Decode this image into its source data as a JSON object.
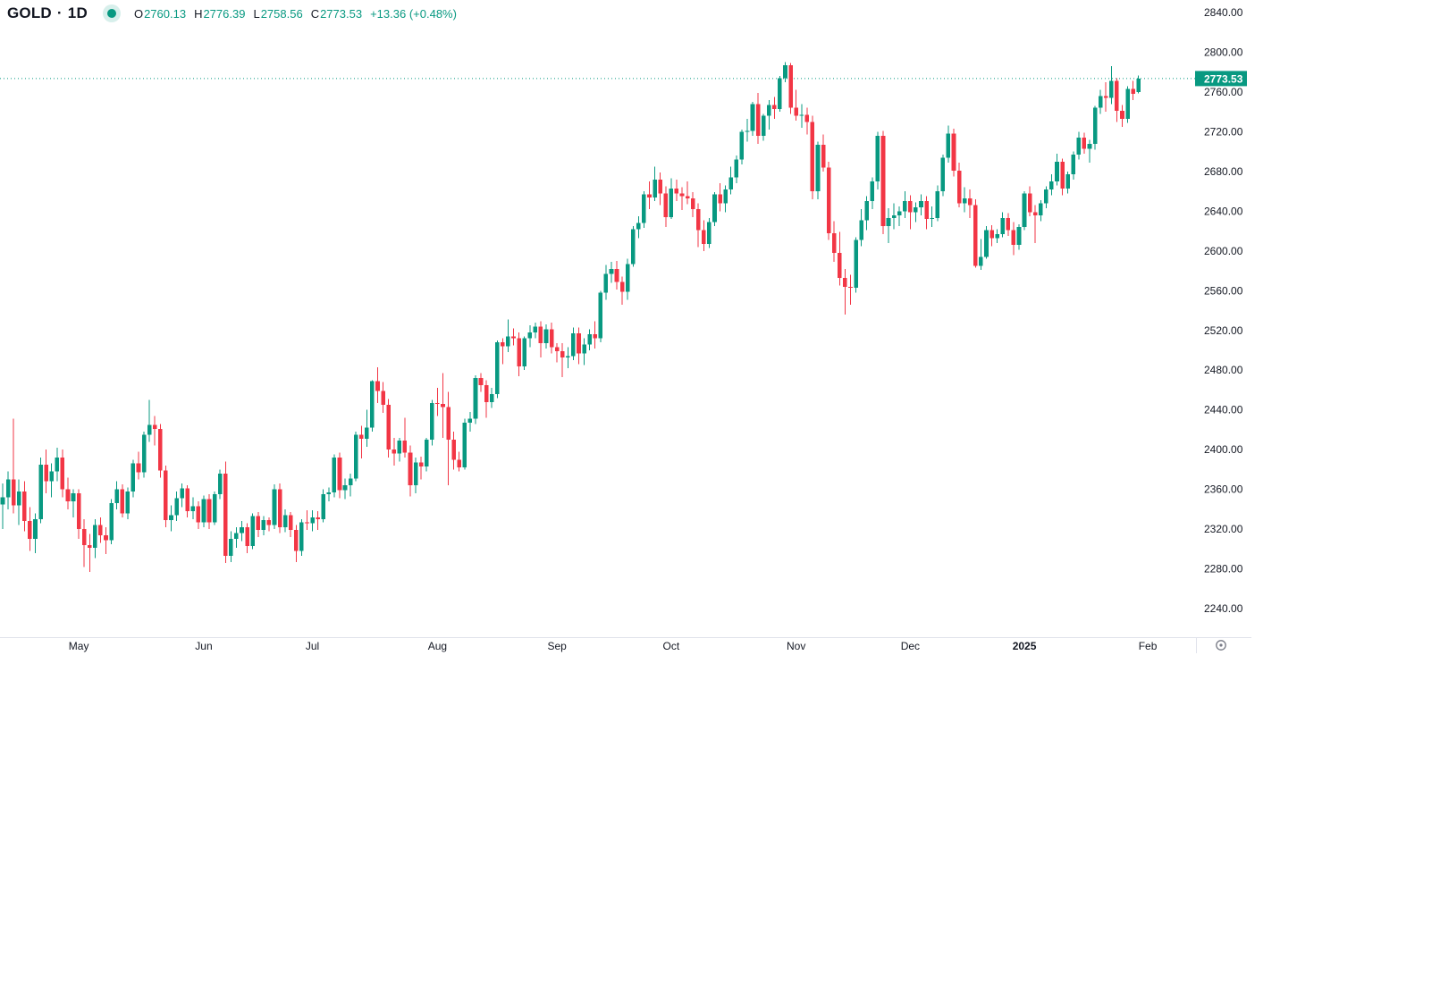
{
  "header": {
    "symbol": "GOLD",
    "separator": "·",
    "timeframe": "1D",
    "o_label": "O",
    "o_value": "2760.13",
    "h_label": "H",
    "h_value": "2776.39",
    "l_label": "L",
    "l_value": "2758.56",
    "c_label": "C",
    "c_value": "2773.53",
    "change_abs": "+13.36",
    "change_pct": "(+0.48%)"
  },
  "colors": {
    "up": "#089981",
    "down": "#f23645",
    "text": "#131722",
    "muted": "#787b86",
    "grid": "#e0e3eb",
    "price_label_bg": "#089981",
    "price_label_text": "#ffffff"
  },
  "price_axis": {
    "current_price_label": "2773.53",
    "ticks": [
      {
        "label": "2840.00",
        "value": 2840
      },
      {
        "label": "2800.00",
        "value": 2800
      },
      {
        "label": "2760.00",
        "value": 2760
      },
      {
        "label": "2720.00",
        "value": 2720
      },
      {
        "label": "2680.00",
        "value": 2680
      },
      {
        "label": "2640.00",
        "value": 2640
      },
      {
        "label": "2600.00",
        "value": 2600
      },
      {
        "label": "2560.00",
        "value": 2560
      },
      {
        "label": "2520.00",
        "value": 2520
      },
      {
        "label": "2480.00",
        "value": 2480
      },
      {
        "label": "2440.00",
        "value": 2440
      },
      {
        "label": "2400.00",
        "value": 2400
      },
      {
        "label": "2360.00",
        "value": 2360
      },
      {
        "label": "2320.00",
        "value": 2320
      },
      {
        "label": "2280.00",
        "value": 2280
      },
      {
        "label": "2240.00",
        "value": 2240
      }
    ]
  },
  "time_axis": {
    "labels": [
      {
        "label": "May",
        "index": 14,
        "bold": false
      },
      {
        "label": "Jun",
        "index": 37,
        "bold": false
      },
      {
        "label": "Jul",
        "index": 57,
        "bold": false
      },
      {
        "label": "Aug",
        "index": 80,
        "bold": false
      },
      {
        "label": "Sep",
        "index": 102,
        "bold": false
      },
      {
        "label": "Oct",
        "index": 123,
        "bold": false
      },
      {
        "label": "Nov",
        "index": 146,
        "bold": false
      },
      {
        "label": "Dec",
        "index": 167,
        "bold": false
      },
      {
        "label": "2025",
        "index": 188,
        "bold": true
      },
      {
        "label": "Feb",
        "index": 210.7,
        "bold": false
      }
    ]
  },
  "chart_data": {
    "type": "candlestick",
    "symbol": "GOLD",
    "timeframe": "1D",
    "current_price": 2773.53,
    "last_candle": {
      "open": 2760.13,
      "high": 2776.39,
      "low": 2758.56,
      "close": 2773.53,
      "change": 13.36,
      "change_pct": 0.48
    },
    "visible_price_range": [
      2211,
      2853
    ],
    "visible_time_range": "Apr 2024 - Feb 2025",
    "legend_position": "top-left",
    "grid": false,
    "candles_ohlc": [
      [
        2345,
        2366,
        2320,
        2352
      ],
      [
        2352,
        2378,
        2340,
        2370
      ],
      [
        2370,
        2431,
        2336,
        2344
      ],
      [
        2344,
        2370,
        2324,
        2358
      ],
      [
        2358,
        2368,
        2318,
        2328
      ],
      [
        2328,
        2342,
        2298,
        2310
      ],
      [
        2310,
        2336,
        2296,
        2330
      ],
      [
        2330,
        2392,
        2326,
        2385
      ],
      [
        2385,
        2400,
        2356,
        2368
      ],
      [
        2368,
        2386,
        2352,
        2378
      ],
      [
        2378,
        2402,
        2368,
        2392
      ],
      [
        2392,
        2400,
        2352,
        2360
      ],
      [
        2360,
        2372,
        2340,
        2348
      ],
      [
        2348,
        2360,
        2332,
        2356
      ],
      [
        2356,
        2360,
        2310,
        2320
      ],
      [
        2320,
        2330,
        2282,
        2304
      ],
      [
        2304,
        2315,
        2277,
        2301
      ],
      [
        2301,
        2330,
        2291,
        2324
      ],
      [
        2324,
        2332,
        2306,
        2314
      ],
      [
        2314,
        2322,
        2295,
        2309
      ],
      [
        2309,
        2350,
        2305,
        2346
      ],
      [
        2346,
        2368,
        2340,
        2360
      ],
      [
        2360,
        2365,
        2332,
        2336
      ],
      [
        2336,
        2362,
        2330,
        2358
      ],
      [
        2358,
        2390,
        2352,
        2386
      ],
      [
        2386,
        2398,
        2370,
        2377
      ],
      [
        2377,
        2418,
        2372,
        2415
      ],
      [
        2415,
        2450,
        2408,
        2425
      ],
      [
        2425,
        2434,
        2404,
        2421
      ],
      [
        2421,
        2426,
        2372,
        2379
      ],
      [
        2379,
        2384,
        2322,
        2329
      ],
      [
        2329,
        2344,
        2318,
        2334
      ],
      [
        2334,
        2358,
        2328,
        2351
      ],
      [
        2351,
        2366,
        2342,
        2361
      ],
      [
        2361,
        2364,
        2332,
        2338
      ],
      [
        2338,
        2352,
        2330,
        2343
      ],
      [
        2343,
        2348,
        2320,
        2327
      ],
      [
        2327,
        2354,
        2322,
        2350
      ],
      [
        2350,
        2355,
        2320,
        2327
      ],
      [
        2327,
        2358,
        2324,
        2355
      ],
      [
        2355,
        2380,
        2350,
        2376
      ],
      [
        2376,
        2388,
        2286,
        2293
      ],
      [
        2293,
        2318,
        2287,
        2310
      ],
      [
        2310,
        2322,
        2301,
        2316
      ],
      [
        2316,
        2328,
        2308,
        2322
      ],
      [
        2322,
        2326,
        2296,
        2303
      ],
      [
        2303,
        2336,
        2300,
        2333
      ],
      [
        2333,
        2337,
        2312,
        2319
      ],
      [
        2319,
        2333,
        2314,
        2329
      ],
      [
        2329,
        2332,
        2318,
        2324
      ],
      [
        2324,
        2365,
        2320,
        2360
      ],
      [
        2360,
        2366,
        2316,
        2322
      ],
      [
        2322,
        2340,
        2317,
        2334
      ],
      [
        2334,
        2337,
        2312,
        2319
      ],
      [
        2319,
        2324,
        2287,
        2298
      ],
      [
        2298,
        2330,
        2293,
        2327
      ],
      [
        2327,
        2339,
        2319,
        2326
      ],
      [
        2326,
        2339,
        2318,
        2332
      ],
      [
        2332,
        2338,
        2319,
        2330
      ],
      [
        2330,
        2360,
        2327,
        2355
      ],
      [
        2355,
        2362,
        2348,
        2357
      ],
      [
        2357,
        2395,
        2352,
        2392
      ],
      [
        2392,
        2397,
        2351,
        2359
      ],
      [
        2359,
        2371,
        2350,
        2364
      ],
      [
        2364,
        2376,
        2353,
        2371
      ],
      [
        2371,
        2418,
        2368,
        2415
      ],
      [
        2415,
        2424,
        2391,
        2411
      ],
      [
        2411,
        2440,
        2403,
        2422
      ],
      [
        2422,
        2470,
        2418,
        2469
      ],
      [
        2469,
        2483,
        2447,
        2459
      ],
      [
        2459,
        2468,
        2437,
        2445
      ],
      [
        2445,
        2451,
        2392,
        2400
      ],
      [
        2400,
        2412,
        2384,
        2396
      ],
      [
        2396,
        2412,
        2388,
        2409
      ],
      [
        2409,
        2432,
        2392,
        2397
      ],
      [
        2397,
        2404,
        2353,
        2364
      ],
      [
        2364,
        2392,
        2356,
        2387
      ],
      [
        2387,
        2393,
        2370,
        2383
      ],
      [
        2383,
        2412,
        2378,
        2410
      ],
      [
        2410,
        2450,
        2404,
        2447
      ],
      [
        2447,
        2462,
        2434,
        2446
      ],
      [
        2446,
        2477,
        2412,
        2443
      ],
      [
        2443,
        2458,
        2364,
        2410
      ],
      [
        2410,
        2418,
        2380,
        2390
      ],
      [
        2390,
        2398,
        2378,
        2382
      ],
      [
        2382,
        2431,
        2380,
        2427
      ],
      [
        2427,
        2438,
        2418,
        2431
      ],
      [
        2431,
        2475,
        2426,
        2472
      ],
      [
        2472,
        2477,
        2458,
        2465
      ],
      [
        2465,
        2470,
        2432,
        2448
      ],
      [
        2448,
        2462,
        2442,
        2456
      ],
      [
        2456,
        2510,
        2452,
        2508
      ],
      [
        2508,
        2512,
        2486,
        2504
      ],
      [
        2504,
        2531,
        2498,
        2514
      ],
      [
        2514,
        2522,
        2505,
        2512
      ],
      [
        2512,
        2518,
        2474,
        2484
      ],
      [
        2484,
        2514,
        2480,
        2512
      ],
      [
        2512,
        2525,
        2503,
        2518
      ],
      [
        2518,
        2528,
        2512,
        2524
      ],
      [
        2524,
        2529,
        2493,
        2507
      ],
      [
        2507,
        2526,
        2502,
        2521
      ],
      [
        2521,
        2528,
        2497,
        2503
      ],
      [
        2503,
        2507,
        2488,
        2499
      ],
      [
        2499,
        2507,
        2473,
        2493
      ],
      [
        2493,
        2503,
        2482,
        2494
      ],
      [
        2494,
        2523,
        2490,
        2517
      ],
      [
        2517,
        2523,
        2486,
        2497
      ],
      [
        2497,
        2512,
        2485,
        2506
      ],
      [
        2506,
        2521,
        2500,
        2516
      ],
      [
        2516,
        2529,
        2502,
        2512
      ],
      [
        2512,
        2560,
        2508,
        2558
      ],
      [
        2558,
        2586,
        2551,
        2577
      ],
      [
        2577,
        2589,
        2568,
        2582
      ],
      [
        2582,
        2590,
        2561,
        2569
      ],
      [
        2569,
        2574,
        2546,
        2559
      ],
      [
        2559,
        2592,
        2551,
        2587
      ],
      [
        2587,
        2625,
        2584,
        2622
      ],
      [
        2622,
        2635,
        2613,
        2628
      ],
      [
        2628,
        2660,
        2623,
        2657
      ],
      [
        2657,
        2670,
        2642,
        2654
      ],
      [
        2654,
        2685,
        2650,
        2672
      ],
      [
        2672,
        2679,
        2646,
        2658
      ],
      [
        2658,
        2665,
        2624,
        2634
      ],
      [
        2634,
        2673,
        2632,
        2663
      ],
      [
        2663,
        2672,
        2650,
        2658
      ],
      [
        2658,
        2664,
        2641,
        2655
      ],
      [
        2655,
        2670,
        2647,
        2653
      ],
      [
        2653,
        2659,
        2634,
        2642
      ],
      [
        2642,
        2648,
        2604,
        2621
      ],
      [
        2621,
        2631,
        2600,
        2607
      ],
      [
        2607,
        2633,
        2603,
        2629
      ],
      [
        2629,
        2659,
        2625,
        2657
      ],
      [
        2657,
        2668,
        2640,
        2648
      ],
      [
        2648,
        2666,
        2639,
        2662
      ],
      [
        2662,
        2685,
        2657,
        2674
      ],
      [
        2674,
        2696,
        2668,
        2692
      ],
      [
        2692,
        2722,
        2687,
        2720
      ],
      [
        2720,
        2733,
        2710,
        2721
      ],
      [
        2721,
        2750,
        2716,
        2748
      ],
      [
        2748,
        2759,
        2708,
        2716
      ],
      [
        2716,
        2738,
        2711,
        2736
      ],
      [
        2736,
        2752,
        2722,
        2747
      ],
      [
        2747,
        2755,
        2733,
        2743
      ],
      [
        2743,
        2776,
        2740,
        2774
      ],
      [
        2774,
        2790,
        2770,
        2787
      ],
      [
        2787,
        2789,
        2738,
        2744
      ],
      [
        2744,
        2762,
        2731,
        2736
      ],
      [
        2736,
        2748,
        2724,
        2737
      ],
      [
        2737,
        2744,
        2717,
        2730
      ],
      [
        2730,
        2736,
        2652,
        2660
      ],
      [
        2660,
        2710,
        2652,
        2707
      ],
      [
        2707,
        2717,
        2680,
        2684
      ],
      [
        2684,
        2690,
        2611,
        2618
      ],
      [
        2618,
        2630,
        2589,
        2598
      ],
      [
        2598,
        2619,
        2565,
        2573
      ],
      [
        2573,
        2582,
        2536,
        2564
      ],
      [
        2564,
        2576,
        2546,
        2563
      ],
      [
        2563,
        2614,
        2558,
        2611
      ],
      [
        2611,
        2642,
        2605,
        2631
      ],
      [
        2631,
        2655,
        2621,
        2650
      ],
      [
        2650,
        2674,
        2642,
        2670
      ],
      [
        2670,
        2720,
        2662,
        2716
      ],
      [
        2716,
        2721,
        2617,
        2625
      ],
      [
        2625,
        2643,
        2608,
        2633
      ],
      [
        2633,
        2648,
        2622,
        2636
      ],
      [
        2636,
        2645,
        2625,
        2640
      ],
      [
        2640,
        2660,
        2633,
        2650
      ],
      [
        2650,
        2656,
        2622,
        2639
      ],
      [
        2639,
        2649,
        2629,
        2644
      ],
      [
        2644,
        2657,
        2636,
        2650
      ],
      [
        2650,
        2655,
        2622,
        2632
      ],
      [
        2632,
        2645,
        2624,
        2633
      ],
      [
        2633,
        2666,
        2630,
        2660
      ],
      [
        2660,
        2697,
        2655,
        2694
      ],
      [
        2694,
        2726,
        2689,
        2718
      ],
      [
        2718,
        2723,
        2675,
        2681
      ],
      [
        2681,
        2689,
        2644,
        2648
      ],
      [
        2648,
        2664,
        2639,
        2653
      ],
      [
        2653,
        2662,
        2633,
        2646
      ],
      [
        2646,
        2652,
        2583,
        2585
      ],
      [
        2585,
        2612,
        2581,
        2594
      ],
      [
        2594,
        2625,
        2592,
        2621
      ],
      [
        2621,
        2626,
        2605,
        2613
      ],
      [
        2613,
        2622,
        2608,
        2617
      ],
      [
        2617,
        2639,
        2614,
        2633
      ],
      [
        2633,
        2638,
        2615,
        2621
      ],
      [
        2621,
        2629,
        2596,
        2606
      ],
      [
        2606,
        2627,
        2601,
        2624
      ],
      [
        2624,
        2660,
        2621,
        2658
      ],
      [
        2658,
        2665,
        2635,
        2639
      ],
      [
        2639,
        2646,
        2608,
        2636
      ],
      [
        2636,
        2651,
        2630,
        2648
      ],
      [
        2648,
        2665,
        2643,
        2662
      ],
      [
        2662,
        2677,
        2656,
        2670
      ],
      [
        2670,
        2698,
        2666,
        2690
      ],
      [
        2690,
        2693,
        2656,
        2663
      ],
      [
        2663,
        2680,
        2658,
        2677
      ],
      [
        2677,
        2700,
        2672,
        2697
      ],
      [
        2697,
        2720,
        2692,
        2714
      ],
      [
        2714,
        2719,
        2698,
        2703
      ],
      [
        2703,
        2712,
        2689,
        2708
      ],
      [
        2708,
        2746,
        2702,
        2744
      ],
      [
        2744,
        2762,
        2738,
        2756
      ],
      [
        2756,
        2770,
        2740,
        2754
      ],
      [
        2754,
        2786,
        2748,
        2771
      ],
      [
        2771,
        2774,
        2730,
        2741
      ],
      [
        2741,
        2747,
        2725,
        2733
      ],
      [
        2733,
        2766,
        2729,
        2763
      ],
      [
        2763,
        2771,
        2752,
        2758
      ],
      [
        2760.13,
        2776.39,
        2758.56,
        2773.53
      ]
    ]
  }
}
